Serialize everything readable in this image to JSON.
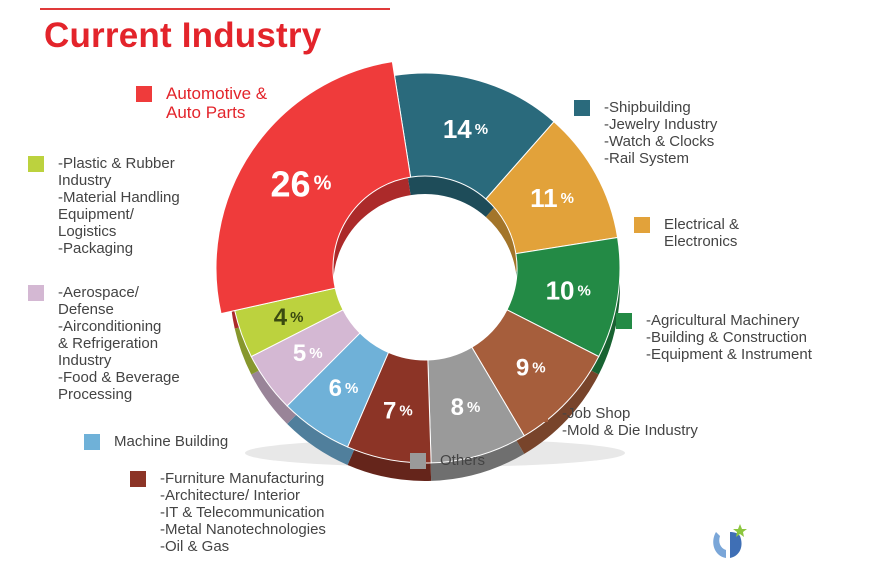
{
  "title": "Current Industry",
  "colors": {
    "title": "#e3242b"
  },
  "chart_data": {
    "type": "pie",
    "donut": true,
    "slices": [
      {
        "key": "shipbuilding",
        "value": 14,
        "label": "14",
        "unit": "%",
        "color": "#2a6a7c"
      },
      {
        "key": "electrical",
        "value": 11,
        "label": "11",
        "unit": "%",
        "color": "#e2a23a"
      },
      {
        "key": "agricultural",
        "value": 10,
        "label": "10",
        "unit": "%",
        "color": "#238a45"
      },
      {
        "key": "jobshop",
        "value": 9,
        "label": "9",
        "unit": "%",
        "color": "#a65e3c"
      },
      {
        "key": "others",
        "value": 8,
        "label": "8",
        "unit": "%",
        "color": "#9a9a9a"
      },
      {
        "key": "furniture",
        "value": 7,
        "label": "7",
        "unit": "%",
        "color": "#8c3426"
      },
      {
        "key": "machine",
        "value": 6,
        "label": "6",
        "unit": "%",
        "color": "#6fb1d8"
      },
      {
        "key": "aerospace",
        "value": 5,
        "label": "5",
        "unit": "%",
        "color": "#d4b8d3"
      },
      {
        "key": "plastic",
        "value": 4,
        "label": "4",
        "unit": "%",
        "color": "#bcd23e"
      },
      {
        "key": "automotive",
        "value": 26,
        "label": "26",
        "unit": "%",
        "color": "#ef3b3b"
      }
    ]
  },
  "legend": {
    "automotive": {
      "color": "#ef3b3b",
      "lines": [
        "Automotive &",
        "Auto Parts"
      ]
    },
    "plastic": {
      "color": "#bcd23e",
      "lines": [
        "-Plastic & Rubber",
        "Industry",
        "-Material Handling",
        "Equipment/",
        "Logistics",
        "-Packaging"
      ]
    },
    "aerospace": {
      "color": "#d4b8d3",
      "lines": [
        "-Aerospace/",
        "Defense",
        "-Airconditioning",
        "& Refrigeration",
        "Industry",
        "-Food & Beverage",
        "Processing"
      ]
    },
    "machine": {
      "color": "#6fb1d8",
      "lines": [
        "Machine Building"
      ]
    },
    "furniture": {
      "color": "#8c3426",
      "lines": [
        "-Furniture Manufacturing",
        "-Architecture/ Interior",
        "-IT & Telecommunication",
        "-Metal Nanotechnologies",
        "-Oil & Gas"
      ]
    },
    "others": {
      "color": "#9a9a9a",
      "lines": [
        "Others"
      ]
    },
    "shipbuilding": {
      "color": "#2a6a7c",
      "lines": [
        "-Shipbuilding",
        "-Jewelry Industry",
        "-Watch & Clocks",
        "-Rail System"
      ]
    },
    "electrical": {
      "color": "#e2a23a",
      "lines": [
        "Electrical &",
        "Electronics"
      ]
    },
    "agricultural": {
      "color": "#238a45",
      "lines": [
        "-Agricultural Machinery",
        "-Building & Construction",
        "-Equipment & Instrument"
      ]
    },
    "jobshop": {
      "color": "#a65e3c",
      "lines": [
        "-Job Shop",
        "-Mold & Die Industry"
      ]
    }
  },
  "logo_icon": "company-logo-icon"
}
